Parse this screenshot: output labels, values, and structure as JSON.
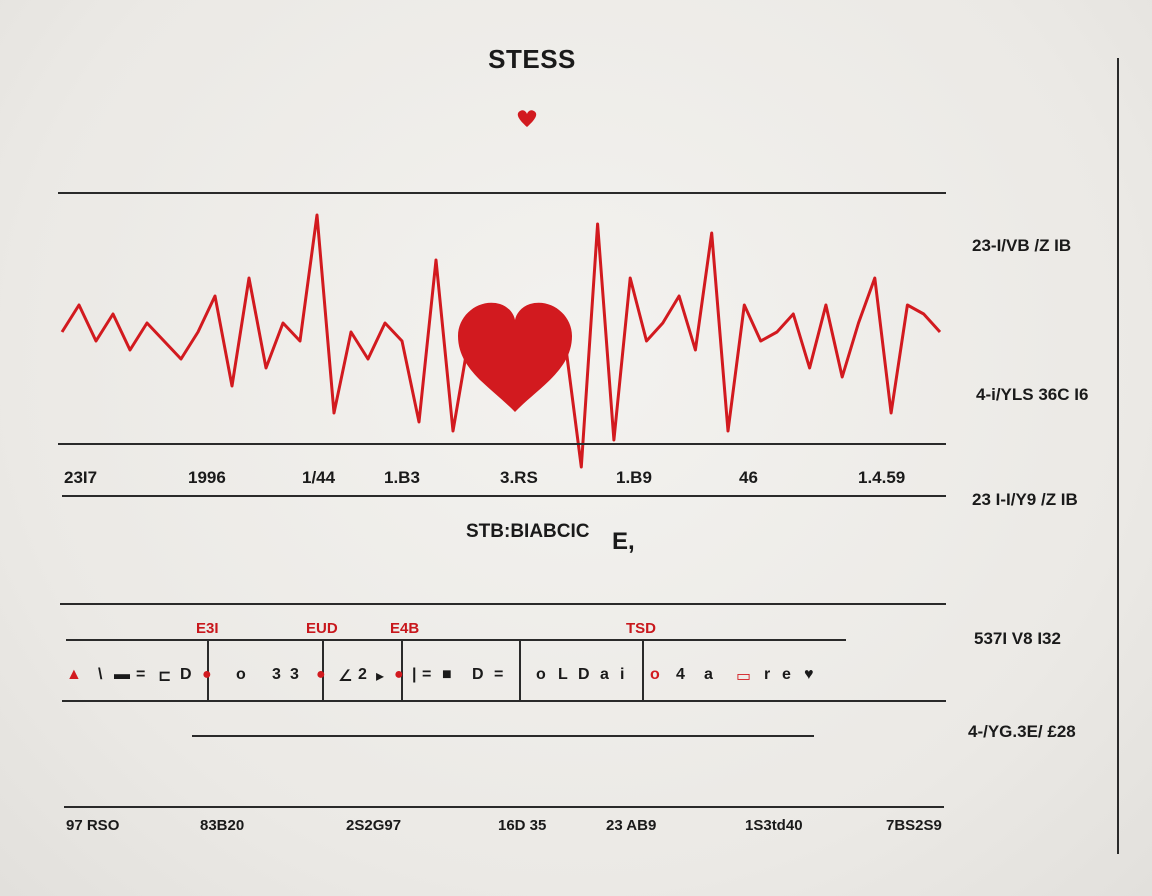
{
  "title": "STESS",
  "colors": {
    "accent": "#d21a1f",
    "line": "#2a2a2a",
    "background": "#eeece8"
  },
  "middle_label": "STB:BIABCIC",
  "middle_mark": "E,",
  "right_labels": [
    "23-I/VB /Z IB",
    "4-i/YLS 36C I6",
    "23 I-I/Y9 /Z IB",
    "537I V8 I32",
    "4-/YG.3E/ £28"
  ],
  "top_axis_ticks": [
    "23I7",
    "1996",
    "1/44",
    "1.B3",
    "3.RS",
    "1.B9",
    "46",
    "1.4.59"
  ],
  "markers": [
    "E3I",
    "EUD",
    "E4B",
    "TSD"
  ],
  "symbol_row": [
    "▲",
    "\\",
    "▬",
    "=",
    "⊏",
    "D",
    "●",
    "o",
    "3",
    "3",
    "●",
    "∠",
    "2",
    "▸",
    "●",
    "|",
    "=",
    "■",
    "D",
    "=",
    "o",
    "L",
    "D",
    "a",
    "i",
    "o",
    "4",
    "a",
    "▭",
    "r",
    "e",
    "♥"
  ],
  "bottom_axis_ticks": [
    "97 RSO",
    "83B20",
    "2S2G97",
    "16D 35",
    "23 AB9",
    "1S3td40",
    "7BS2S9"
  ],
  "ecg_signal": {
    "left": [
      2,
      5,
      1,
      4,
      0,
      3,
      1,
      -1,
      2,
      6,
      -4,
      8,
      -2,
      3,
      1,
      15,
      -7,
      2,
      -1,
      3,
      1,
      -8,
      10,
      -9,
      2
    ],
    "right": [
      1,
      -13,
      14,
      -10,
      8,
      1,
      3,
      6,
      0,
      13,
      -9,
      5,
      1,
      2,
      4,
      -2,
      5,
      -3,
      3,
      8,
      -7,
      5,
      4,
      2
    ]
  }
}
